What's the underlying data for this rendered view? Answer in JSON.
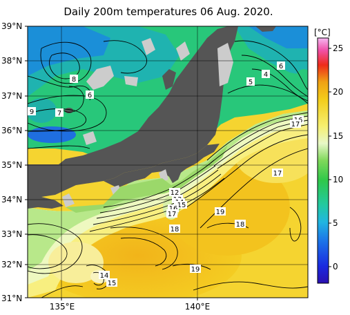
{
  "title": "Daily 200m temperatures 06 Aug. 2020.",
  "lat_labels": [
    "39°N",
    "38°N",
    "37°N",
    "36°N",
    "35°N",
    "34°N",
    "33°N",
    "32°N",
    "31°N"
  ],
  "lon_labels": [
    "135°E",
    "140°E"
  ],
  "colorbar": {
    "unit": "[°C]",
    "ticks": [
      "25",
      "20",
      "15",
      "10",
      "5",
      "0"
    ],
    "range": [
      -2,
      26
    ]
  },
  "contour_labels": [
    "8",
    "6",
    "9",
    "7",
    "5",
    "4",
    "6",
    "16",
    "17",
    "17",
    "12",
    "13",
    "14",
    "15",
    "16",
    "17",
    "19",
    "18",
    "18",
    "19",
    "14",
    "15"
  ],
  "colors": {
    "land": "#555555",
    "ice_coast": "#cccccc"
  }
}
